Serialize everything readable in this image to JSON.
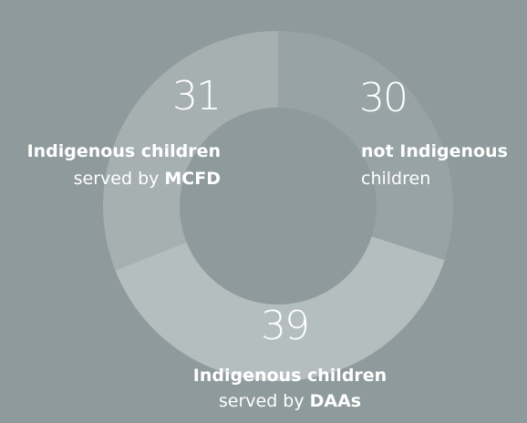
{
  "chart_data": {
    "type": "donut",
    "categories": [
      {
        "heading": "not Indigenous",
        "text": "children"
      },
      {
        "heading": "Indigenous children",
        "text": "served by",
        "emphasis": "DAAs"
      },
      {
        "heading": "Indigenous children",
        "text": "served by",
        "emphasis": "MCFD"
      }
    ],
    "values": [
      30,
      39,
      31
    ],
    "colors": [
      "#97a3a4",
      "#b5bebe",
      "#a6b0b1"
    ],
    "background": "#8e9a9b"
  }
}
